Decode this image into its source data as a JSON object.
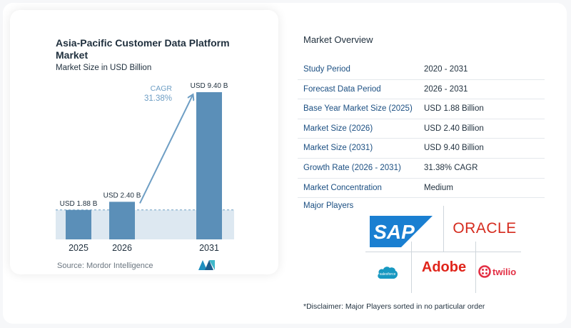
{
  "chart_data": {
    "type": "bar",
    "title": "Asia-Pacific Customer Data Platform Market",
    "subtitle": "Market Size in USD Billion",
    "categories": [
      "2025",
      "2026",
      "2031"
    ],
    "values": [
      1.88,
      2.4,
      9.4
    ],
    "value_labels": [
      "USD 1.88 B",
      "USD 2.40 B",
      "USD 9.40 B"
    ],
    "ylim": [
      0,
      9.4
    ],
    "cagr_label": "CAGR",
    "cagr_value": "31.38%",
    "colors": {
      "bar": "#5b8fb8",
      "bar_dark": "#3e76a3",
      "shade": "#dde8f1",
      "arrow": "#6e9ec4",
      "dash": "#6e9ec4"
    }
  },
  "source": "Source:  Mordor Intelligence",
  "overview": {
    "heading": "Market Overview",
    "rows": [
      {
        "label": "Study Period",
        "value": "2020 - 2031"
      },
      {
        "label": "Forecast Data Period",
        "value": "2026 - 2031"
      },
      {
        "label": "Base Year Market Size (2025)",
        "value": "USD 1.88 Billion"
      },
      {
        "label": "Market Size (2026)",
        "value": "USD 2.40 Billion"
      },
      {
        "label": "Market Size (2031)",
        "value": "USD 9.40 Billion"
      },
      {
        "label": "Growth Rate (2026 - 2031)",
        "value": "31.38% CAGR"
      },
      {
        "label": "Market Concentration",
        "value": "Medium"
      }
    ]
  },
  "players": {
    "heading": "Major Players",
    "logos": {
      "sap": "SAP",
      "oracle": "ORACLE",
      "salesforce": "salesforce",
      "adobe": "Adobe",
      "twilio": "twilio"
    },
    "colors": {
      "sap": "#1a7fd1",
      "oracle": "#d52b1e",
      "salesforce": "#1798c1",
      "adobe": "#e0251b",
      "twilio": "#e32f44"
    }
  },
  "disclaimer": "*Disclaimer: Major Players sorted in no particular order"
}
